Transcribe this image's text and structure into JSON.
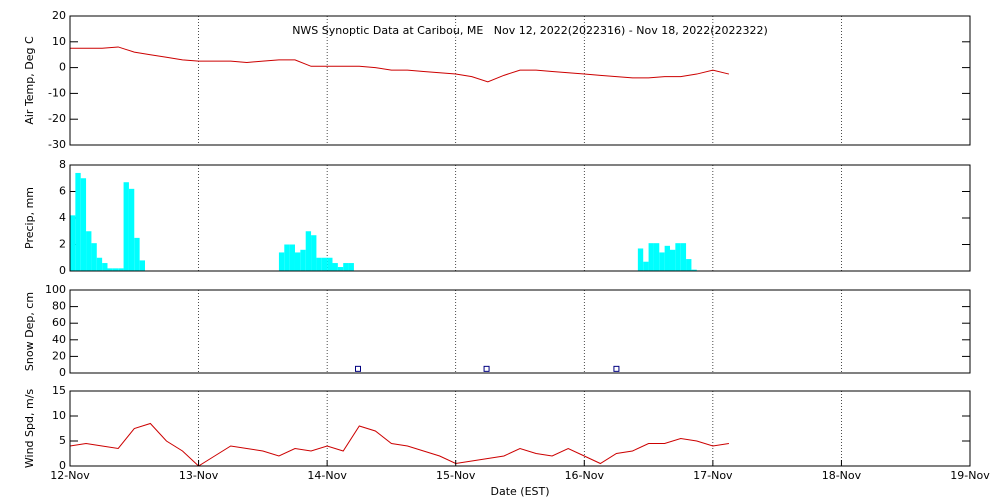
{
  "chart_data": [
    {
      "type": "line",
      "title": "NWS Synoptic Data at Caribou, ME   Nov 12, 2022(2022316) - Nov 18, 2022(2022322)",
      "ylabel": "Air Temp, Deg C",
      "x": [
        12,
        12.125,
        12.25,
        12.375,
        12.5,
        12.625,
        12.75,
        12.875,
        13,
        13.125,
        13.25,
        13.375,
        13.5,
        13.625,
        13.75,
        13.875,
        14,
        14.125,
        14.25,
        14.375,
        14.5,
        14.625,
        14.75,
        14.875,
        15,
        15.125,
        15.25,
        15.375,
        15.5,
        15.625,
        15.75,
        15.875,
        16,
        16.125,
        16.25,
        16.375,
        16.5,
        16.625,
        16.75,
        16.875,
        17,
        17.125
      ],
      "values": [
        7.5,
        7.5,
        7.5,
        8,
        6,
        5,
        4,
        3,
        2.5,
        2.5,
        2.5,
        2,
        2.5,
        3,
        3,
        0.5,
        0.5,
        0.5,
        0.5,
        0,
        -1,
        -1,
        -1.5,
        -2,
        -2.5,
        -3.5,
        -5.5,
        -3,
        -1,
        -1,
        -1.5,
        -2,
        -2.5,
        -3,
        -3.5,
        -4,
        -4,
        -3.5,
        -3.5,
        -2.5,
        -1,
        -2.5
      ],
      "color": "#cc0000",
      "xlim": [
        12,
        19
      ],
      "ylim": [
        -30,
        20
      ],
      "yticks": [
        -30,
        -20,
        -10,
        0,
        10,
        20
      ],
      "grid": true
    },
    {
      "type": "bar",
      "ylabel": "Precip, mm",
      "x": [
        12,
        12.0417,
        12.0833,
        12.125,
        12.1667,
        12.2083,
        12.25,
        12.2917,
        12.3333,
        12.375,
        12.4167,
        12.4583,
        12.5,
        12.5417,
        13.625,
        13.6667,
        13.7083,
        13.75,
        13.7917,
        13.8333,
        13.875,
        13.9167,
        13.9583,
        14,
        14.0417,
        14.0833,
        14.125,
        14.1667,
        16.4167,
        16.4583,
        16.5,
        16.5417,
        16.5833,
        16.625,
        16.6667,
        16.7083,
        16.75,
        16.7917,
        16.8333
      ],
      "values": [
        4.2,
        7.4,
        7,
        3,
        2.1,
        1,
        0.6,
        0.2,
        0.2,
        0.2,
        6.7,
        6.2,
        2.5,
        0.8,
        1.4,
        2,
        2,
        1.4,
        1.6,
        3,
        2.7,
        1,
        1,
        1,
        0.6,
        0.3,
        0.6,
        0.6,
        1.7,
        0.7,
        2.1,
        2.1,
        1.4,
        1.9,
        1.6,
        2.1,
        2.1,
        0.9,
        0.1
      ],
      "color": "#00ffff",
      "xlim": [
        12,
        19
      ],
      "ylim": [
        0,
        8
      ],
      "yticks": [
        0,
        2,
        4,
        6,
        8
      ],
      "grid": true
    },
    {
      "type": "scatter",
      "ylabel": "Snow Dep, cm",
      "x": [
        14.24,
        15.24,
        16.25
      ],
      "values": [
        5,
        5,
        5
      ],
      "color": "#000080",
      "xlim": [
        12,
        19
      ],
      "ylim": [
        0,
        100
      ],
      "yticks": [
        0,
        20,
        40,
        60,
        80,
        100
      ],
      "grid": true
    },
    {
      "type": "line",
      "ylabel": "Wind Spd, m/s",
      "xlabel": "Date (EST)",
      "x": [
        12,
        12.125,
        12.25,
        12.375,
        12.5,
        12.625,
        12.75,
        12.875,
        13,
        13.125,
        13.25,
        13.375,
        13.5,
        13.625,
        13.75,
        13.875,
        14,
        14.125,
        14.25,
        14.375,
        14.5,
        14.625,
        14.75,
        14.875,
        15,
        15.125,
        15.25,
        15.375,
        15.5,
        15.625,
        15.75,
        15.875,
        16,
        16.125,
        16.25,
        16.375,
        16.5,
        16.625,
        16.75,
        16.875,
        17,
        17.125
      ],
      "values": [
        4,
        4.5,
        4,
        3.5,
        7.5,
        8.5,
        5,
        3,
        0,
        2,
        4,
        3.5,
        3,
        2,
        3.5,
        3,
        4,
        3,
        8,
        7,
        4.5,
        4,
        3,
        2,
        0.5,
        1,
        1.5,
        2,
        3.5,
        2.5,
        2,
        3.5,
        2,
        0.5,
        2.5,
        3,
        4.5,
        4.5,
        5.5,
        5,
        4,
        4.5
      ],
      "color": "#cc0000",
      "xlim": [
        12,
        19
      ],
      "ylim": [
        0,
        15
      ],
      "yticks": [
        0,
        5,
        10,
        15
      ],
      "grid": true,
      "xticks": [
        {
          "value": 12,
          "label": "12-Nov"
        },
        {
          "value": 13,
          "label": "13-Nov"
        },
        {
          "value": 14,
          "label": "14-Nov"
        },
        {
          "value": 15,
          "label": "15-Nov"
        },
        {
          "value": 16,
          "label": "16-Nov"
        },
        {
          "value": 17,
          "label": "17-Nov"
        },
        {
          "value": 18,
          "label": "18-Nov"
        },
        {
          "value": 19,
          "label": "19-Nov"
        }
      ]
    }
  ]
}
